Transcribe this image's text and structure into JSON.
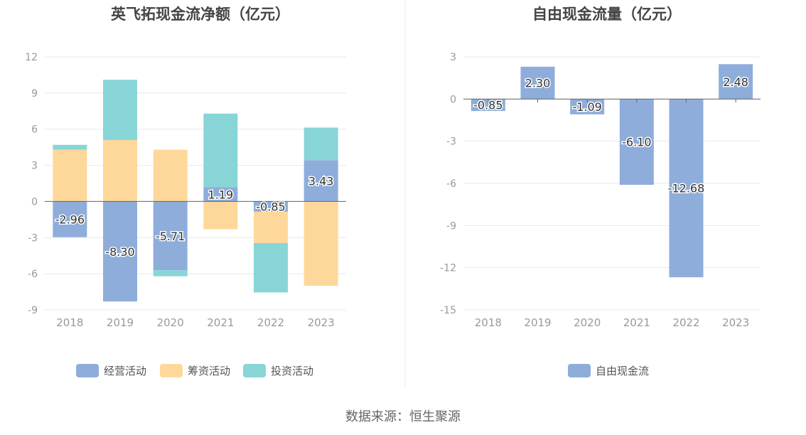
{
  "source_label": "数据来源：恒生聚源",
  "colors": {
    "operating": "#8eaddb",
    "financing": "#fed89a",
    "investing": "#88d5d8",
    "fcf": "#8eaddb",
    "grid": "#e4e8f0",
    "axis": "#666666",
    "tick_text": "#999999",
    "title": "#444444",
    "divider": "#eeeeee"
  },
  "chart_data": [
    {
      "type": "bar",
      "stacked": true,
      "title": "英飞拓现金流净额（亿元）",
      "categories": [
        "2018",
        "2019",
        "2020",
        "2021",
        "2022",
        "2023"
      ],
      "ylim": [
        -9,
        12
      ],
      "yticks": [
        "12",
        "9",
        "6",
        "3",
        "0",
        "-3",
        "-6",
        "-9"
      ],
      "grid": true,
      "legend_position": "bottom",
      "series": [
        {
          "name": "经营活动",
          "values": [
            -2.96,
            -8.3,
            -5.71,
            1.19,
            -0.85,
            3.43
          ],
          "labels": [
            "-2.96",
            "-8.30",
            "-5.71",
            "1.19",
            "-0.85",
            "3.43"
          ]
        },
        {
          "name": "筹资活动",
          "values": [
            4.3,
            5.1,
            4.3,
            -2.3,
            -2.6,
            -7.0
          ]
        },
        {
          "name": "投资活动",
          "values": [
            0.4,
            5.0,
            -0.5,
            6.1,
            -4.1,
            2.7
          ]
        }
      ]
    },
    {
      "type": "bar",
      "title": "自由现金流量（亿元）",
      "categories": [
        "2018",
        "2019",
        "2020",
        "2021",
        "2022",
        "2023"
      ],
      "ylim": [
        -15,
        3
      ],
      "yticks": [
        "3",
        "0",
        "-3",
        "-6",
        "-9",
        "-12",
        "-15"
      ],
      "grid": true,
      "legend_position": "bottom",
      "series": [
        {
          "name": "自由现金流",
          "values": [
            -0.85,
            2.3,
            -1.09,
            -6.1,
            -12.68,
            2.48
          ],
          "labels": [
            "-0.85",
            "2.30",
            "-1.09",
            "-6.10",
            "-12.68",
            "2.48"
          ]
        }
      ]
    }
  ]
}
